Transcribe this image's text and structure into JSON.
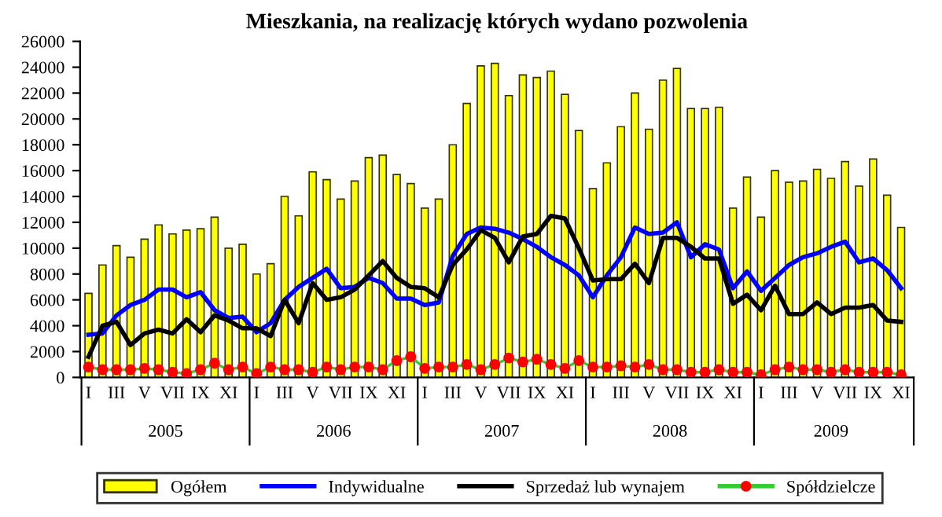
{
  "chart_data": {
    "type": "bar",
    "title": "Mieszkania, na realizację których wydano pozwolenia",
    "categories": [
      "I",
      null,
      "III",
      null,
      "V",
      null,
      "VII",
      null,
      "IX",
      null,
      "XI",
      null,
      "I",
      null,
      "III",
      null,
      "V",
      null,
      "VII",
      null,
      "IX",
      null,
      "XI",
      null,
      "I",
      null,
      "III",
      null,
      "V",
      null,
      "VII",
      null,
      "IX",
      null,
      "XI",
      null,
      "I",
      null,
      "III",
      null,
      "V",
      null,
      "VII",
      null,
      "IX",
      null,
      "XI",
      null,
      "I",
      null,
      "III",
      null,
      "V",
      null,
      "VII",
      null,
      "IX",
      null,
      "XI"
    ],
    "annotations": [
      "2005",
      "2006",
      "2007",
      "2008",
      "2009"
    ],
    "series": [
      {
        "name": "Ogółem",
        "color": "#ffff00",
        "values": [
          6500,
          8700,
          10200,
          9300,
          10700,
          11800,
          11100,
          11400,
          11500,
          12400,
          10000,
          10300,
          8000,
          8800,
          14000,
          12500,
          15900,
          15300,
          13800,
          15200,
          17000,
          17200,
          15700,
          15000,
          13100,
          13800,
          18000,
          21200,
          24100,
          24300,
          21800,
          23400,
          23200,
          23700,
          21900,
          19100,
          14600,
          16600,
          19400,
          22000,
          19200,
          23000,
          23900,
          20800,
          20800,
          20900,
          13100,
          15500,
          12400,
          16000,
          15100,
          15200,
          16100,
          15400,
          16700,
          14800,
          16900,
          14100,
          11600
        ]
      },
      {
        "name": "Indywidualne",
        "type": "line",
        "color": "#0000ff",
        "marker": "none",
        "values": [
          3300,
          3400,
          4800,
          5600,
          6000,
          6800,
          6800,
          6200,
          6600,
          5200,
          4600,
          4700,
          3500,
          4200,
          6000,
          7000,
          7700,
          8400,
          6900,
          7000,
          7700,
          7300,
          6100,
          6100,
          5600,
          5800,
          9400,
          11100,
          11600,
          11500,
          11200,
          10700,
          10100,
          9300,
          8700,
          7900,
          6200,
          7900,
          9300,
          11600,
          11100,
          11200,
          12000,
          9300,
          10300,
          9900,
          6900,
          8200,
          6700,
          7700,
          8700,
          9300,
          9600,
          10100,
          10500,
          8900,
          9200,
          8300,
          6900
        ]
      },
      {
        "name": "Sprzedaż lub wynajem",
        "type": "line",
        "color": "#000000",
        "marker": "none",
        "values": [
          1600,
          4000,
          4300,
          2500,
          3400,
          3700,
          3400,
          4500,
          3500,
          4800,
          4400,
          3800,
          3800,
          3200,
          6000,
          4200,
          7300,
          6000,
          6200,
          6800,
          7900,
          9000,
          7700,
          7000,
          6900,
          6200,
          8700,
          9900,
          11400,
          10800,
          8900,
          10900,
          11100,
          12500,
          12300,
          10000,
          7500,
          7600,
          7600,
          8800,
          7300,
          10800,
          10800,
          10100,
          9200,
          9200,
          5700,
          6400,
          5200,
          7100,
          4900,
          4900,
          5800,
          4900,
          5400,
          5400,
          5600,
          4400,
          4300
        ]
      },
      {
        "name": "Spółdzielcze",
        "type": "line",
        "color": "#33cc33",
        "marker": "circle",
        "values": [
          800,
          600,
          600,
          600,
          700,
          600,
          400,
          300,
          600,
          1100,
          600,
          800,
          300,
          800,
          600,
          600,
          400,
          800,
          600,
          800,
          800,
          600,
          1300,
          1600,
          700,
          800,
          800,
          1000,
          600,
          1000,
          1500,
          1200,
          1400,
          1000,
          700,
          1300,
          800,
          800,
          900,
          800,
          1000,
          600,
          600,
          400,
          400,
          600,
          400,
          400,
          200,
          600,
          800,
          600,
          600,
          400,
          600,
          400,
          400,
          400,
          200
        ]
      }
    ],
    "ylim": [
      0,
      26000
    ],
    "yticks": [
      0,
      2000,
      4000,
      6000,
      8000,
      10000,
      12000,
      14000,
      16000,
      18000,
      20000,
      22000,
      24000,
      26000
    ],
    "grid": false,
    "legend": "bottom"
  }
}
